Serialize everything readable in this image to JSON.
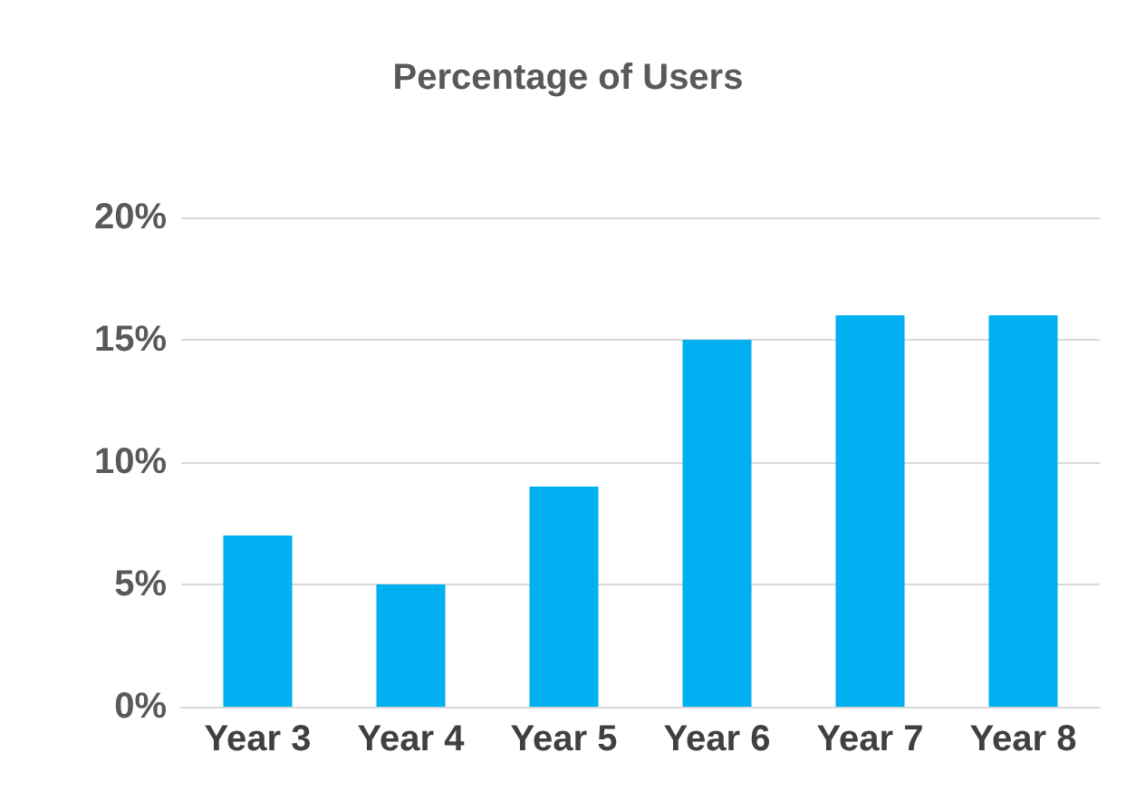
{
  "chart_data": {
    "type": "bar",
    "title": "Percentage of Users",
    "categories": [
      "Year 3",
      "Year 4",
      "Year 5",
      "Year 6",
      "Year 7",
      "Year 8"
    ],
    "values": [
      7,
      5,
      9,
      15,
      16,
      16
    ],
    "color": "#00b0f0",
    "ylim": [
      0,
      20
    ],
    "yticks": [
      {
        "value": 0,
        "label": "0%"
      },
      {
        "value": 5,
        "label": "5%"
      },
      {
        "value": 10,
        "label": "10%"
      },
      {
        "value": 15,
        "label": "15%"
      },
      {
        "value": 20,
        "label": "20%"
      }
    ],
    "grid": "y"
  }
}
